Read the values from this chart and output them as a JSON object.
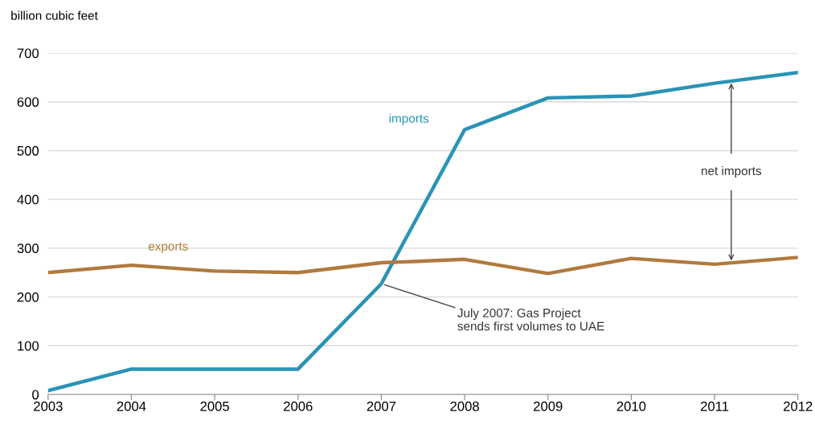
{
  "chart_data": {
    "type": "line",
    "ylabel": "billion cubic feet",
    "x": [
      2003,
      2004,
      2005,
      2006,
      2007,
      2008,
      2009,
      2010,
      2011,
      2012
    ],
    "series": [
      {
        "name": "imports",
        "color": "#2a93b5",
        "values": [
          8,
          52,
          52,
          52,
          227,
          543,
          608,
          612,
          638,
          660
        ]
      },
      {
        "name": "exports",
        "color": "#b07a3e",
        "values": [
          250,
          265,
          253,
          250,
          270,
          277,
          248,
          279,
          267,
          281
        ]
      }
    ],
    "xlim": [
      2003,
      2012
    ],
    "xticks": [
      2003,
      2004,
      2005,
      2006,
      2007,
      2008,
      2009,
      2010,
      2011,
      2012
    ],
    "ylim": [
      0,
      700
    ],
    "yticks": [
      0,
      100,
      200,
      300,
      400,
      500,
      600,
      700
    ],
    "grid": "y",
    "legend": false,
    "marker": "none",
    "line_style": "solid",
    "annotations": [
      {
        "text": "net imports",
        "x": 2011.2,
        "y": 643
      },
      {
        "text": "July 2007: Gas Project\nsends first volumes to UAE",
        "x": 2007,
        "y": 227
      }
    ]
  }
}
